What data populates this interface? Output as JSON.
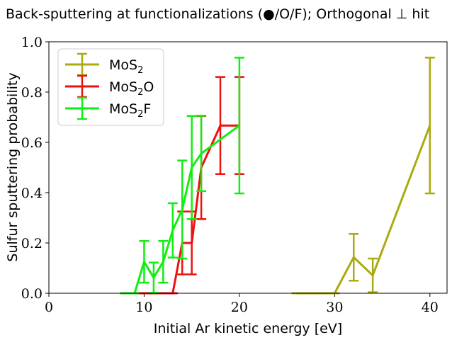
{
  "chart_data": {
    "type": "line",
    "title": "Back-sputtering at functionalizations (●/O/F); Orthogonal ⊥ hit",
    "xlabel": "Initial Ar kinetic energy [eV]",
    "ylabel": "Sulfur sputtering probability",
    "xlim": [
      0,
      41.8
    ],
    "ylim": [
      0,
      1.0
    ],
    "xticks": [
      0,
      10,
      20,
      30,
      40
    ],
    "yticks": [
      0.0,
      0.2,
      0.4,
      0.6,
      0.8,
      1.0
    ],
    "xtick_labels": [
      "0",
      "10",
      "20",
      "30",
      "40"
    ],
    "ytick_labels": [
      "0.0",
      "0.2",
      "0.4",
      "0.6",
      "0.8",
      "1.0"
    ],
    "legend_position": "top-left",
    "series": [
      {
        "name": "MoS2",
        "name_main": "MoS",
        "name_sub": "2",
        "name_suffix": "",
        "color": "#aaaa11",
        "x": [
          26,
          28,
          30,
          32,
          34,
          40
        ],
        "y": [
          0.0,
          0.0,
          0.0,
          0.143,
          0.071,
          0.667
        ],
        "yerr": [
          0.0,
          0.0,
          0.0,
          0.093,
          0.067,
          0.27
        ]
      },
      {
        "name": "MoS2O",
        "name_main": "MoS",
        "name_sub": "2",
        "name_suffix": "O",
        "color": "#ee1111",
        "x": [
          8,
          9,
          10,
          11,
          12,
          13,
          14,
          15,
          16,
          18,
          20
        ],
        "y": [
          0.0,
          0.0,
          0.0,
          0.0,
          0.0,
          0.0,
          0.2,
          0.2,
          0.5,
          0.667,
          0.667
        ],
        "yerr": [
          0.0,
          0.0,
          0.0,
          0.0,
          0.0,
          0.0,
          0.125,
          0.125,
          0.205,
          0.193,
          0.193
        ]
      },
      {
        "name": "MoS2F",
        "name_main": "MoS",
        "name_sub": "2",
        "name_suffix": "F",
        "color": "#11ee11",
        "x": [
          8,
          9,
          10,
          11,
          12,
          13,
          14,
          15,
          16,
          20
        ],
        "y": [
          0.0,
          0.0,
          0.125,
          0.062,
          0.125,
          0.25,
          0.333,
          0.5,
          0.556,
          0.667
        ],
        "yerr": [
          0.0,
          0.0,
          0.083,
          0.06,
          0.083,
          0.108,
          0.195,
          0.205,
          0.15,
          0.27
        ]
      }
    ]
  }
}
